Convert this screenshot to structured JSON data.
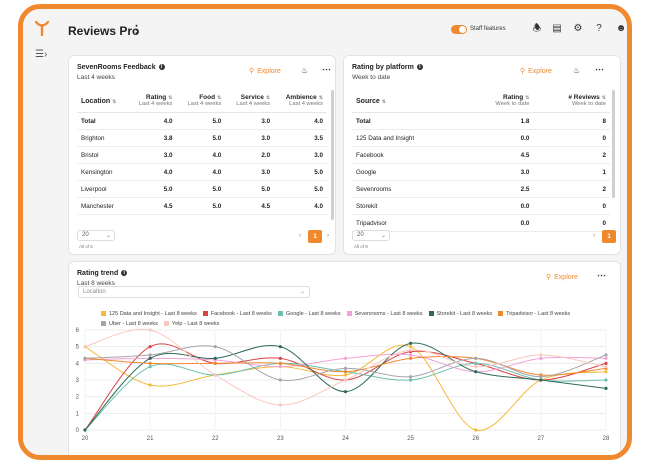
{
  "app": {
    "title": "Reviews Pro",
    "staff_toggle_label": "Staff features",
    "staff_toggle_on": true
  },
  "icons": {
    "logo": "brand-y-icon",
    "expand": "sidebar-expand-icon",
    "more": "kebab-icon",
    "bell": "bell-icon",
    "doc": "document-icon",
    "gear": "gear-icon",
    "help": "help-icon",
    "user": "user-icon",
    "search": "magnifier-icon",
    "info": "info-icon"
  },
  "colors": {
    "accent": "#f0892e"
  },
  "feedback_card": {
    "title": "SevenRooms Feedback",
    "subtitle": "Last 4 weeks",
    "explore_label": "Explore",
    "columns": [
      {
        "label": "Location",
        "sub": ""
      },
      {
        "label": "Rating",
        "sub": "Last 4 weeks"
      },
      {
        "label": "Food",
        "sub": "Last 4 weeks"
      },
      {
        "label": "Service",
        "sub": "Last 4 weeks"
      },
      {
        "label": "Ambience",
        "sub": "Last 4 weeks"
      }
    ],
    "rows": [
      [
        "Total",
        "4.0",
        "5.0",
        "3.0",
        "4.0"
      ],
      [
        "Brighton",
        "3.8",
        "5.0",
        "3.0",
        "3.5"
      ],
      [
        "Bristol",
        "3.0",
        "4.0",
        "2.0",
        "3.0"
      ],
      [
        "Kensington",
        "4.0",
        "4.0",
        "3.0",
        "5.0"
      ],
      [
        "Liverpool",
        "5.0",
        "5.0",
        "5.0",
        "5.0"
      ],
      [
        "Manchester",
        "4.5",
        "5.0",
        "4.5",
        "4.0"
      ]
    ],
    "page_size": "20",
    "page_summary": "All of 6",
    "current_page": "1"
  },
  "platform_card": {
    "title": "Rating by platform",
    "subtitle": "Week to date",
    "explore_label": "Explore",
    "columns": [
      {
        "label": "Source",
        "sub": ""
      },
      {
        "label": "Rating",
        "sub": "Week to date"
      },
      {
        "label": "# Reviews",
        "sub": "Week to date"
      }
    ],
    "rows": [
      [
        "Total",
        "1.8",
        "8"
      ],
      [
        "125 Data and Insight",
        "0.0",
        "0"
      ],
      [
        "Facebook",
        "4.5",
        "2"
      ],
      [
        "Google",
        "3.0",
        "1"
      ],
      [
        "Sevenrooms",
        "2.5",
        "2"
      ],
      [
        "Storekit",
        "0.0",
        "0"
      ],
      [
        "Tripadvisor",
        "0.0",
        "0"
      ]
    ],
    "page_size": "20",
    "page_summary": "All of 8",
    "current_page": "1"
  },
  "trend_card": {
    "title": "Rating trend",
    "subtitle": "Last 8 weeks",
    "explore_label": "Explore",
    "location_placeholder": "Location"
  },
  "chart_data": {
    "type": "line",
    "x": [
      "20",
      "21",
      "22",
      "23",
      "24",
      "25",
      "26",
      "27",
      "28"
    ],
    "ylim": [
      0,
      6
    ],
    "yticks": [
      "0",
      "1",
      "2",
      "3",
      "4",
      "5",
      "6"
    ],
    "grid": true,
    "legend_position": "top",
    "series": [
      {
        "name": "125 Data and Insight - Last 8 weeks",
        "color": "#f5b93b",
        "values": [
          5.0,
          2.7,
          3.3,
          3.8,
          3.3,
          5.0,
          0.0,
          3.0,
          3.5
        ]
      },
      {
        "name": "Facebook - Last 8 weeks",
        "color": "#d94343",
        "values": [
          0.0,
          5.0,
          4.0,
          4.3,
          3.0,
          4.7,
          4.0,
          3.0,
          4.0
        ]
      },
      {
        "name": "Google - Last 8 weeks",
        "color": "#6bbfae",
        "values": [
          0.0,
          3.8,
          3.3,
          4.0,
          3.5,
          3.0,
          4.0,
          3.0,
          3.0
        ]
      },
      {
        "name": "Sevenrooms - Last 8 weeks",
        "color": "#f2a2d8",
        "values": [
          4.2,
          4.3,
          4.2,
          3.8,
          4.3,
          4.5,
          3.5,
          4.3,
          4.3
        ]
      },
      {
        "name": "Storekit - Last 8 weeks",
        "color": "#2d6a5a",
        "values": [
          0.0,
          4.3,
          4.3,
          5.0,
          2.3,
          5.2,
          3.5,
          3.0,
          2.5
        ]
      },
      {
        "name": "Tripadvisor - Last 8 weeks",
        "color": "#f0892e",
        "values": [
          4.3,
          4.0,
          4.0,
          4.0,
          3.5,
          4.3,
          4.3,
          3.3,
          3.7
        ]
      },
      {
        "name": "Uber - Last 8 weeks",
        "color": "#a5a5ad",
        "values": [
          4.3,
          4.5,
          5.0,
          3.0,
          3.7,
          3.2,
          4.3,
          3.2,
          4.5
        ]
      },
      {
        "name": "Yelp - Last 8 weeks",
        "color": "#f8c8c0",
        "values": [
          5.0,
          6.0,
          3.3,
          1.5,
          3.0,
          4.8,
          3.8,
          4.5,
          3.8
        ]
      }
    ]
  }
}
